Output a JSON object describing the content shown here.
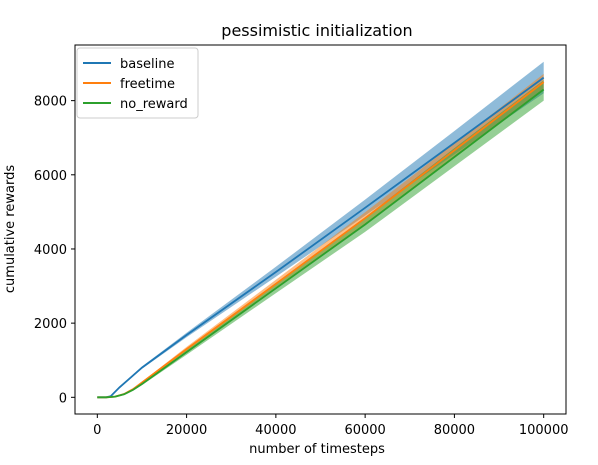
{
  "chart_data": {
    "type": "line",
    "title": "pessimistic initialization",
    "xlabel": "number of timesteps",
    "ylabel": "cumulative rewards",
    "xlim": [
      -5000,
      105000
    ],
    "ylim": [
      -450,
      9500
    ],
    "xticks": [
      0,
      20000,
      40000,
      60000,
      80000,
      100000
    ],
    "xtick_labels": [
      "0",
      "20000",
      "40000",
      "60000",
      "80000",
      "100000"
    ],
    "yticks": [
      0,
      2000,
      4000,
      6000,
      8000
    ],
    "ytick_labels": [
      "0",
      "2000",
      "4000",
      "6000",
      "8000"
    ],
    "grid": false,
    "legend_position": "top-left",
    "series": [
      {
        "name": "baseline",
        "color": "#1f77b4",
        "x": [
          0,
          2000,
          3000,
          5000,
          10000,
          20000,
          40000,
          60000,
          80000,
          100000
        ],
        "y": [
          0,
          0,
          30,
          270,
          800,
          1680,
          3380,
          5110,
          6860,
          8620
        ],
        "band_lower": [
          0,
          0,
          30,
          260,
          770,
          1620,
          3250,
          4900,
          6550,
          8200
        ],
        "band_upper": [
          0,
          0,
          30,
          280,
          830,
          1740,
          3520,
          5330,
          7180,
          9050
        ]
      },
      {
        "name": "freetime",
        "color": "#ff7f0e",
        "x": [
          0,
          2000,
          4000,
          6000,
          8000,
          10000,
          20000,
          40000,
          60000,
          80000,
          100000
        ],
        "y": [
          0,
          0,
          20,
          90,
          220,
          400,
          1300,
          3060,
          4830,
          6660,
          8500
        ],
        "band_lower": [
          0,
          0,
          20,
          85,
          210,
          380,
          1240,
          2950,
          4680,
          6470,
          8280
        ],
        "band_upper": [
          0,
          0,
          20,
          95,
          230,
          420,
          1360,
          3170,
          4990,
          6850,
          8720
        ]
      },
      {
        "name": "no_reward",
        "color": "#2ca02c",
        "x": [
          0,
          2000,
          4000,
          6000,
          8000,
          10000,
          20000,
          40000,
          60000,
          80000,
          100000
        ],
        "y": [
          0,
          0,
          20,
          80,
          200,
          360,
          1220,
          2940,
          4660,
          6480,
          8300
        ],
        "band_lower": [
          0,
          0,
          15,
          70,
          180,
          330,
          1150,
          2810,
          4460,
          6230,
          8000
        ],
        "band_upper": [
          0,
          0,
          25,
          90,
          220,
          390,
          1290,
          3060,
          4850,
          6720,
          8550
        ]
      }
    ]
  }
}
